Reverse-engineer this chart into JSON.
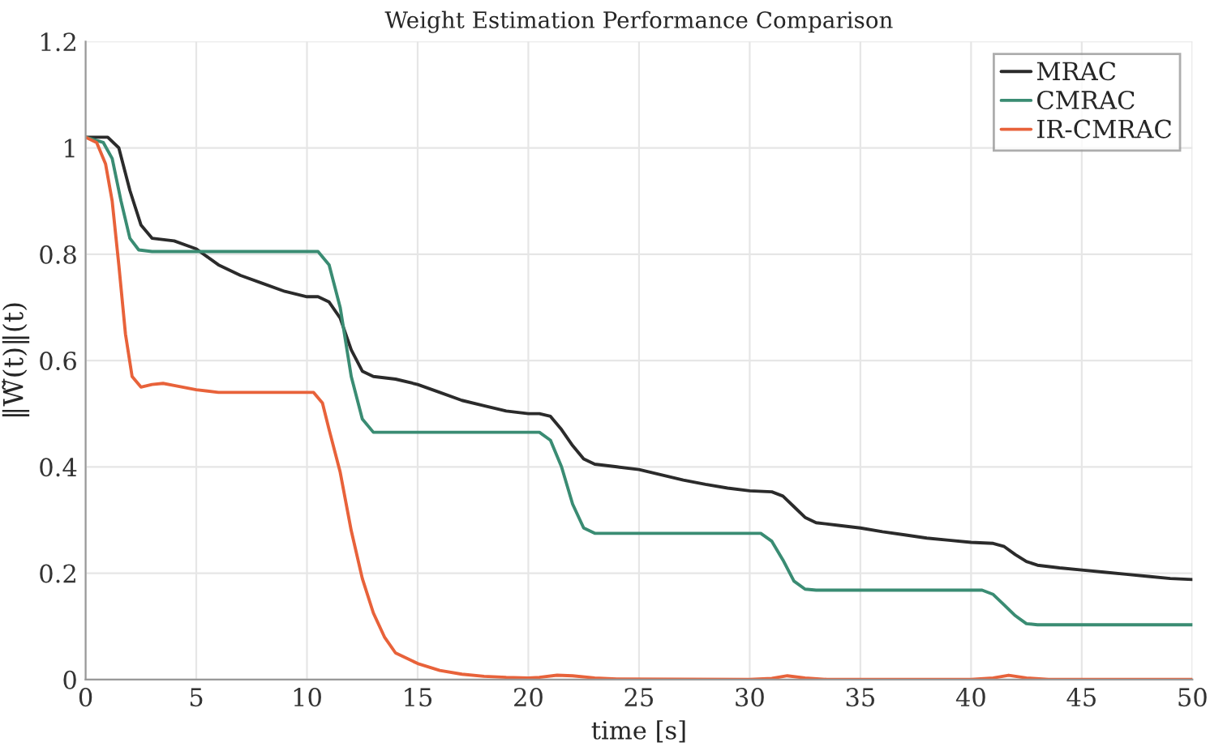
{
  "chart_data": {
    "type": "line",
    "title": "Weight Estimation Performance Comparison",
    "xlabel": "time [s]",
    "ylabel": "‖W̃(t)‖(t)",
    "xlim": [
      0,
      50
    ],
    "xticks": [
      0,
      5,
      10,
      15,
      20,
      25,
      30,
      35,
      40,
      45,
      50
    ],
    "ylim": [
      0,
      1.2
    ],
    "yticks": [
      0,
      0.2,
      0.4,
      0.6,
      0.8,
      1,
      1.2
    ],
    "grid": true,
    "legend": "top right",
    "marker": "none",
    "line_style": "solid",
    "series": [
      {
        "name": "MRAC",
        "color": "#2b2b2b",
        "x": [
          0,
          1,
          1.5,
          2,
          2.5,
          3,
          4,
          5,
          6,
          7,
          8,
          9,
          10,
          10.5,
          11,
          11.5,
          12,
          12.5,
          13,
          14,
          15,
          16,
          17,
          18,
          19,
          20,
          20.5,
          21,
          21.5,
          22,
          22.5,
          23,
          24,
          25,
          26,
          27,
          28,
          29,
          30,
          31,
          31.5,
          32,
          32.5,
          33,
          34,
          35,
          36,
          37,
          38,
          39,
          40,
          41,
          41.5,
          42,
          42.5,
          43,
          44,
          45,
          46,
          47,
          48,
          49,
          50
        ],
        "values": [
          1.02,
          1.02,
          1.0,
          0.92,
          0.855,
          0.83,
          0.825,
          0.81,
          0.78,
          0.76,
          0.745,
          0.73,
          0.72,
          0.72,
          0.71,
          0.68,
          0.62,
          0.58,
          0.57,
          0.565,
          0.555,
          0.54,
          0.525,
          0.515,
          0.505,
          0.5,
          0.5,
          0.495,
          0.47,
          0.44,
          0.415,
          0.405,
          0.4,
          0.395,
          0.385,
          0.375,
          0.367,
          0.36,
          0.355,
          0.353,
          0.345,
          0.325,
          0.305,
          0.295,
          0.29,
          0.285,
          0.278,
          0.272,
          0.266,
          0.262,
          0.258,
          0.256,
          0.25,
          0.235,
          0.222,
          0.215,
          0.21,
          0.206,
          0.202,
          0.198,
          0.194,
          0.19,
          0.188
        ]
      },
      {
        "name": "CMRAC",
        "color": "#3a8c73",
        "x": [
          0,
          0.8,
          1.2,
          1.6,
          2,
          2.4,
          3,
          10.5,
          11,
          11.5,
          12,
          12.5,
          13,
          20.5,
          21,
          21.5,
          22,
          22.5,
          23,
          30.5,
          31,
          31.5,
          32,
          32.5,
          33,
          40.5,
          41,
          41.5,
          42,
          42.5,
          43,
          50
        ],
        "values": [
          1.02,
          1.01,
          0.98,
          0.9,
          0.83,
          0.808,
          0.805,
          0.805,
          0.78,
          0.7,
          0.57,
          0.49,
          0.465,
          0.465,
          0.45,
          0.4,
          0.33,
          0.285,
          0.275,
          0.275,
          0.26,
          0.225,
          0.185,
          0.17,
          0.168,
          0.168,
          0.16,
          0.14,
          0.12,
          0.105,
          0.103,
          0.103
        ]
      },
      {
        "name": "IR-CMRAC",
        "color": "#e8623a",
        "x": [
          0,
          0.5,
          0.9,
          1.2,
          1.5,
          1.8,
          2.1,
          2.5,
          3,
          3.5,
          4,
          5,
          6,
          10.3,
          10.7,
          11,
          11.5,
          12,
          12.5,
          13,
          13.5,
          14,
          15,
          16,
          17,
          18,
          19,
          20,
          20.5,
          21.3,
          22,
          23,
          24,
          30,
          31,
          31.7,
          32.5,
          33.5,
          40,
          41,
          41.7,
          42.5,
          43.5,
          50
        ],
        "values": [
          1.02,
          1.01,
          0.97,
          0.9,
          0.78,
          0.65,
          0.57,
          0.55,
          0.555,
          0.557,
          0.553,
          0.545,
          0.54,
          0.54,
          0.52,
          0.47,
          0.39,
          0.28,
          0.19,
          0.125,
          0.08,
          0.05,
          0.03,
          0.017,
          0.01,
          0.006,
          0.004,
          0.003,
          0.004,
          0.008,
          0.007,
          0.003,
          0.001,
          0.0,
          0.002,
          0.007,
          0.003,
          0.0,
          0.0,
          0.003,
          0.008,
          0.003,
          0.0,
          0.0
        ]
      }
    ]
  }
}
